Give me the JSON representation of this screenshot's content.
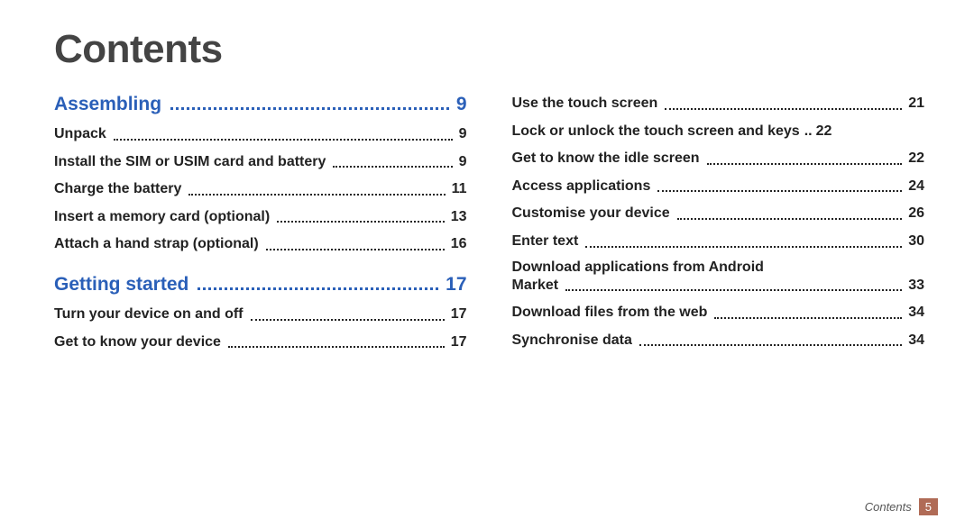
{
  "title": "Contents",
  "colors": {
    "title_color": "#444444",
    "section_color": "#2a5fb8",
    "item_color": "#222222",
    "footer_text": "#555555",
    "footer_badge_bg": "#b06b56",
    "footer_badge_text": "#ffffff",
    "background": "#ffffff"
  },
  "typography": {
    "title_fontsize": 44,
    "section_fontsize": 21,
    "item_fontsize": 16,
    "footer_fontsize": 13,
    "font_family": "Arial, Helvetica, sans-serif"
  },
  "left_column": [
    {
      "type": "section",
      "label": "Assembling",
      "page": "9"
    },
    {
      "type": "item",
      "label": "Unpack",
      "page": "9"
    },
    {
      "type": "item",
      "label": "Install the SIM or USIM card and battery",
      "page": "9"
    },
    {
      "type": "item",
      "label": "Charge the battery",
      "page": "11"
    },
    {
      "type": "item",
      "label": "Insert a memory card (optional)",
      "page": "13"
    },
    {
      "type": "item",
      "label": "Attach a hand strap (optional)",
      "page": "16"
    },
    {
      "type": "section",
      "label": "Getting started",
      "page": "17"
    },
    {
      "type": "item",
      "label": "Turn your device on and off",
      "page": "17"
    },
    {
      "type": "item",
      "label": "Get to know your device",
      "page": "17"
    }
  ],
  "right_column": [
    {
      "type": "item",
      "label": "Use the touch screen",
      "page": "21"
    },
    {
      "type": "item",
      "label": "Lock or unlock the touch screen and keys",
      "page": "22",
      "tight": true
    },
    {
      "type": "item",
      "label": "Get to know the idle screen",
      "page": "22"
    },
    {
      "type": "item",
      "label": "Access applications",
      "page": "24"
    },
    {
      "type": "item",
      "label": "Customise your device",
      "page": "26"
    },
    {
      "type": "item",
      "label": "Enter text",
      "page": "30"
    },
    {
      "type": "item",
      "label_line1": "Download applications from Android",
      "label": "Market",
      "page": "33",
      "multiline": true
    },
    {
      "type": "item",
      "label": "Download files from the web",
      "page": "34"
    },
    {
      "type": "item",
      "label": "Synchronise data",
      "page": "34"
    }
  ],
  "footer": {
    "label": "Contents",
    "page": "5"
  }
}
